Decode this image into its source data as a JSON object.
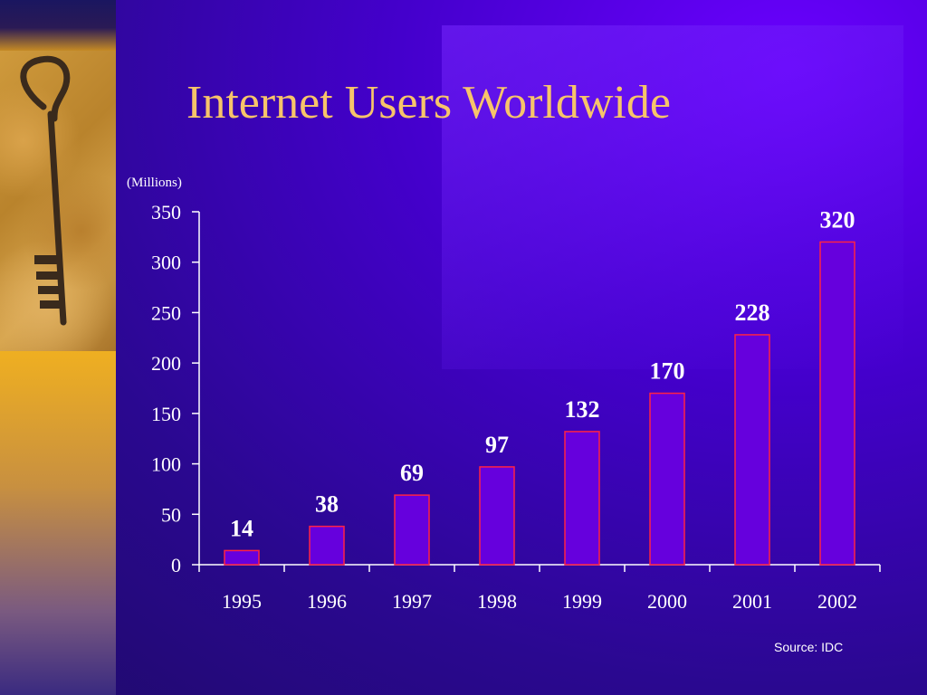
{
  "slide": {
    "title": "Internet Users Worldwide",
    "source": "Source: IDC"
  },
  "chart_data": {
    "type": "bar",
    "title": "",
    "xlabel": "",
    "ylabel": "",
    "unit_label": "(Millions)",
    "categories": [
      "1995",
      "1996",
      "1997",
      "1998",
      "1999",
      "2000",
      "2001",
      "2002"
    ],
    "values": [
      14,
      38,
      69,
      97,
      132,
      170,
      228,
      320
    ],
    "data_labels": [
      "14",
      "38",
      "69",
      "97",
      "132",
      "170",
      "228",
      "320"
    ],
    "ylim": [
      0,
      350
    ],
    "yticks": [
      0,
      50,
      100,
      150,
      200,
      250,
      300,
      350
    ],
    "grid": false,
    "legend": "none",
    "colors": {
      "bar_fill": "#6600dd",
      "bar_stroke": "#ff2244",
      "axis": "#ffffff",
      "text": "#ffffff"
    }
  },
  "decor": {
    "image_description_icon": "key-icon"
  }
}
